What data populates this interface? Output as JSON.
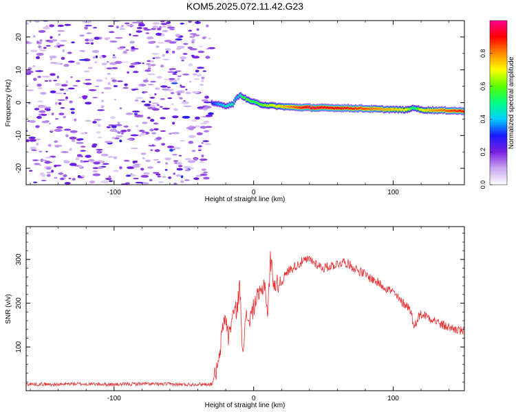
{
  "figure_title": "KOM5.2025.072.11.42.G23",
  "chart_data": [
    {
      "type": "heatmap",
      "title": "KOM5.2025.072.11.42.G23",
      "xlabel": "Height of straight line (km)",
      "ylabel": "Frequency (Hz)",
      "xlim": [
        -163,
        151
      ],
      "ylim": [
        -25,
        25
      ],
      "x_ticks": [
        -100,
        0,
        100
      ],
      "y_ticks": [
        -20,
        -10,
        0,
        10,
        20
      ],
      "colorbar": {
        "label": "Normalized spectral amplitude",
        "range": [
          0,
          1
        ],
        "ticks": [
          "0.0",
          "0.2",
          "0.4",
          "0.6",
          "0.8"
        ],
        "colormap": [
          "#ffffff",
          "#c9a6f0",
          "#7a1fe0",
          "#1a1aff",
          "#00cfff",
          "#00ff80",
          "#5aff00",
          "#ffff00",
          "#ff8a00",
          "#ff0000",
          "#ff0090"
        ]
      },
      "noise_region": {
        "x_range": [
          -163,
          -30
        ],
        "freq_range": [
          -25,
          25
        ],
        "amplitude": "0.05–0.25"
      },
      "signal_track": {
        "x": [
          -30,
          -25,
          -20,
          -15,
          -12,
          -10,
          -8,
          -5,
          0,
          5,
          10,
          15,
          20,
          30,
          40,
          50,
          60,
          70,
          80,
          90,
          100,
          110,
          115,
          120,
          130,
          140,
          151
        ],
        "freq": [
          0.0,
          -0.5,
          -1.0,
          -0.5,
          1.5,
          2.2,
          2.0,
          1.0,
          0.2,
          -0.5,
          -0.8,
          -1.0,
          -1.2,
          -1.4,
          -1.5,
          -1.6,
          -1.6,
          -1.7,
          -1.8,
          -2.0,
          -2.1,
          -2.2,
          -1.5,
          -2.2,
          -2.3,
          -2.4,
          -2.6
        ],
        "amplitude": [
          0.3,
          0.4,
          0.45,
          0.5,
          0.4,
          0.45,
          0.55,
          0.6,
          0.55,
          0.6,
          0.65,
          0.7,
          0.75,
          0.85,
          0.95,
          0.92,
          0.9,
          0.88,
          0.85,
          0.8,
          0.75,
          0.7,
          0.5,
          0.7,
          0.8,
          0.85,
          0.9
        ]
      }
    },
    {
      "type": "line",
      "xlabel": "Height of straight line (km)",
      "ylabel": "SNR (v/v)",
      "xlim": [
        -163,
        151
      ],
      "ylim": [
        0,
        375
      ],
      "x_ticks": [
        -100,
        0,
        100
      ],
      "y_ticks": [
        100,
        200,
        300
      ],
      "color": "#e8282b",
      "series": [
        {
          "x": [
            -163,
            -150,
            -140,
            -130,
            -120,
            -110,
            -100,
            -90,
            -80,
            -70,
            -60,
            -50,
            -40,
            -30,
            -25,
            -22,
            -20,
            -18,
            -15,
            -12,
            -10,
            -8,
            -5,
            -3,
            0,
            2,
            5,
            8,
            10,
            12,
            15,
            20,
            25,
            30,
            35,
            40,
            45,
            50,
            55,
            60,
            65,
            70,
            75,
            80,
            85,
            90,
            95,
            100,
            105,
            110,
            113,
            115,
            117,
            120,
            125,
            130,
            135,
            140,
            145,
            151
          ],
          "y": [
            15,
            15,
            14,
            16,
            15,
            15,
            14,
            15,
            16,
            15,
            15,
            14,
            15,
            15,
            60,
            150,
            170,
            120,
            175,
            185,
            240,
            100,
            170,
            160,
            190,
            210,
            220,
            250,
            170,
            300,
            240,
            250,
            275,
            285,
            295,
            300,
            290,
            280,
            285,
            290,
            295,
            285,
            275,
            265,
            255,
            245,
            235,
            225,
            205,
            195,
            180,
            140,
            165,
            175,
            170,
            160,
            150,
            145,
            140,
            135
          ]
        }
      ]
    }
  ]
}
